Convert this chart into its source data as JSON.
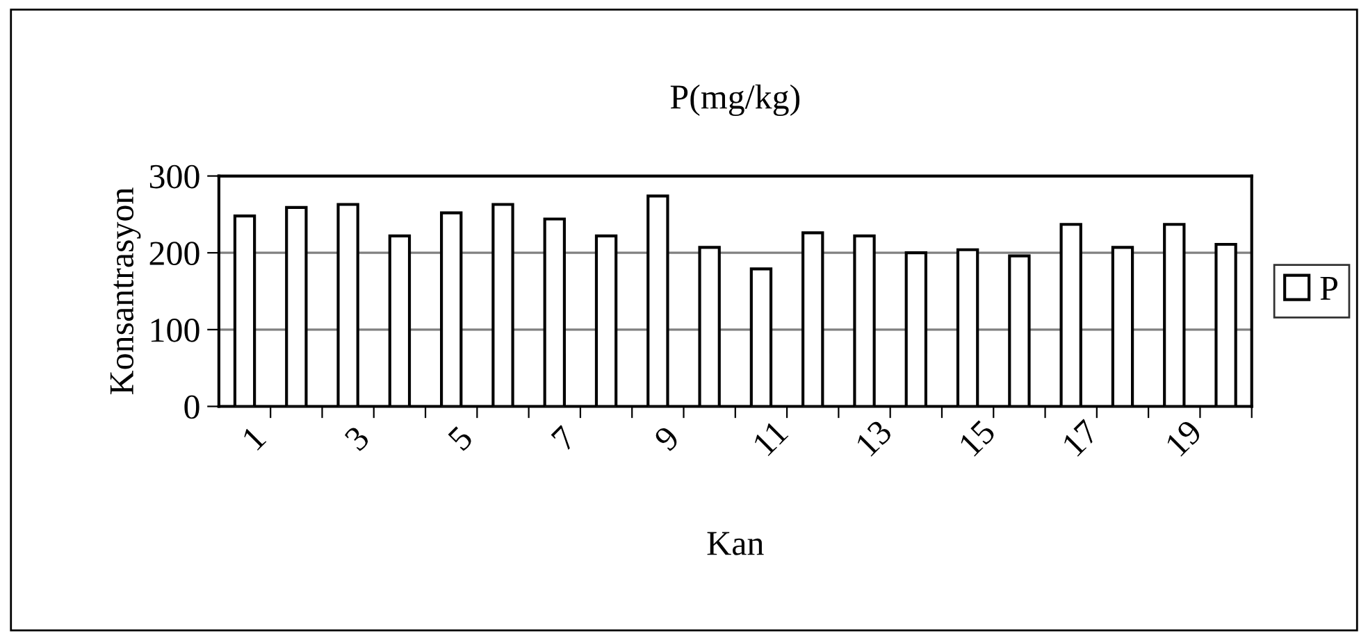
{
  "chart_data": {
    "type": "bar",
    "title": "P(mg/kg)",
    "xlabel": "Kan",
    "ylabel": "Konsantrasyon",
    "categories": [
      "1",
      null,
      "3",
      null,
      "5",
      null,
      "7",
      null,
      "9",
      null,
      "11",
      null,
      "13",
      null,
      "15",
      null,
      "17",
      null,
      "19",
      null
    ],
    "series": [
      {
        "name": "P",
        "color": "#ffffff",
        "values": [
          248,
          259,
          263,
          222,
          252,
          263,
          244,
          222,
          274,
          207,
          179,
          226,
          222,
          200,
          204,
          196,
          237,
          207,
          237,
          211
        ]
      }
    ],
    "ylim": [
      0,
      300
    ],
    "yticks": [
      0,
      100,
      200,
      300
    ],
    "grid": "y",
    "legend": "right"
  }
}
